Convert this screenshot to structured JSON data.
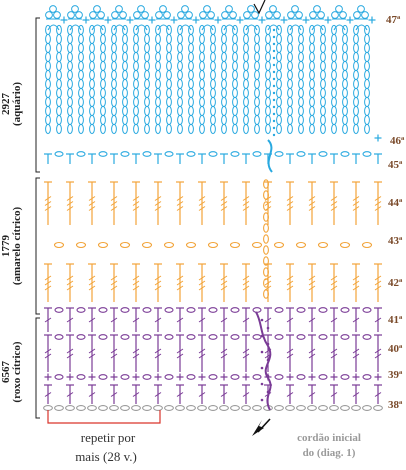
{
  "colors": {
    "aquario": "#29a9e0",
    "amarelo": "#f2a43a",
    "roxo": "#7a3b96",
    "base_chain": "#9a9a9a",
    "brace": "#222222",
    "repeat_bracket": "#d9342b",
    "row_label": "#7a4a2a"
  },
  "row_labels": {
    "r47": "47ª",
    "r46": "46ª",
    "r45": "45ª",
    "r44": "44ª",
    "r43": "43ª",
    "r42": "42ª",
    "r41": "41ª",
    "r40": "40ª",
    "r39": "39ª",
    "r38": "38ª"
  },
  "color_sections": [
    {
      "code": "2927",
      "name": "(aquário)"
    },
    {
      "code": "1779",
      "name": "(amarelo cítrico)"
    },
    {
      "code": "6567",
      "name": "(roxo cítrico)"
    }
  ],
  "notes": {
    "repeat_line1": "repetir  por",
    "repeat_line2": "mais (28 v.)",
    "start_line1": "cordão inicial",
    "start_line2": "do (diag. 1)"
  },
  "icons": {
    "start_arrow": "arrow-icon",
    "finish_mark": "check-icon"
  }
}
